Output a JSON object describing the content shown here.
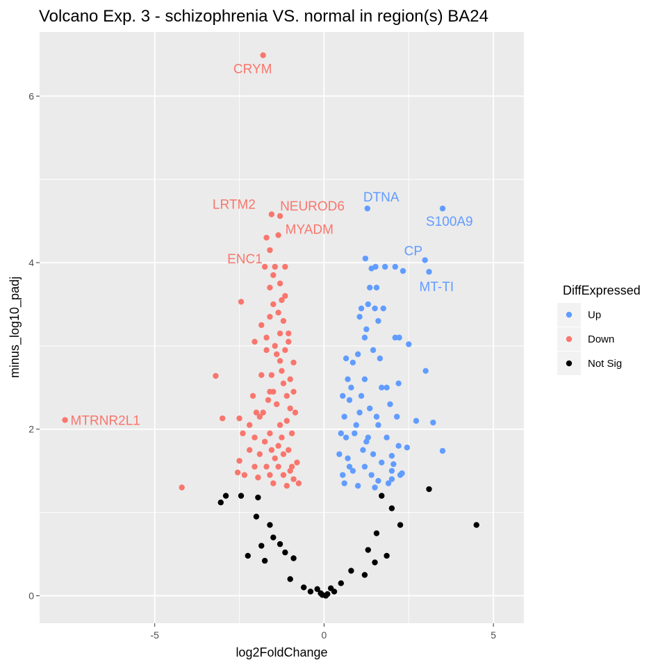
{
  "chart_data": {
    "type": "scatter",
    "title": "Volcano Exp. 3 - schizophrenia VS. normal in region(s) BA24",
    "xlabel": "log2FoldChange",
    "ylabel": "minus_log10_padj",
    "xlim": [
      -8.4,
      5.9
    ],
    "ylim": [
      -0.33,
      6.77
    ],
    "x_ticks": [
      -5,
      0,
      5
    ],
    "x_tick_labels": [
      "-5",
      "0",
      "5"
    ],
    "y_ticks": [
      0,
      2,
      4,
      6
    ],
    "y_tick_labels": [
      "0",
      "2",
      "4",
      "6"
    ],
    "grid": true,
    "legend": {
      "title": "DiffExpressed",
      "placement": "right",
      "entries": [
        {
          "key": "up",
          "label": "Up",
          "color": "#619CFF"
        },
        {
          "key": "down",
          "label": "Down",
          "color": "#F8766D"
        },
        {
          "key": "notsig",
          "label": "Not Sig",
          "color": "#000000"
        }
      ]
    },
    "series": [
      {
        "name": "Up",
        "color": "#619CFF",
        "points": [
          [
            1.28,
            4.65
          ],
          [
            3.5,
            4.65
          ],
          [
            2.98,
            4.03
          ],
          [
            3.1,
            3.89
          ],
          [
            1.22,
            4.05
          ],
          [
            1.4,
            3.93
          ],
          [
            1.52,
            3.95
          ],
          [
            1.8,
            3.95
          ],
          [
            2.1,
            3.95
          ],
          [
            2.33,
            3.9
          ],
          [
            1.35,
            3.7
          ],
          [
            1.55,
            3.7
          ],
          [
            1.1,
            3.45
          ],
          [
            1.3,
            3.5
          ],
          [
            1.5,
            3.45
          ],
          [
            1.75,
            3.45
          ],
          [
            1.05,
            3.35
          ],
          [
            1.6,
            3.3
          ],
          [
            1.25,
            3.2
          ],
          [
            2.1,
            3.1
          ],
          [
            2.22,
            3.1
          ],
          [
            2.5,
            3.02
          ],
          [
            1.2,
            3.1
          ],
          [
            1.45,
            2.95
          ],
          [
            1.65,
            2.85
          ],
          [
            0.65,
            2.85
          ],
          [
            0.85,
            2.8
          ],
          [
            1.0,
            2.9
          ],
          [
            3.0,
            2.7
          ],
          [
            2.2,
            2.55
          ],
          [
            1.85,
            2.5
          ],
          [
            0.55,
            2.4
          ],
          [
            0.75,
            2.35
          ],
          [
            1.2,
            2.6
          ],
          [
            1.95,
            2.3
          ],
          [
            0.6,
            2.15
          ],
          [
            1.05,
            2.2
          ],
          [
            1.6,
            2.05
          ],
          [
            2.15,
            2.15
          ],
          [
            2.72,
            2.1
          ],
          [
            3.22,
            2.08
          ],
          [
            0.5,
            1.95
          ],
          [
            0.9,
            1.95
          ],
          [
            1.3,
            1.9
          ],
          [
            1.85,
            1.9
          ],
          [
            2.2,
            1.8
          ],
          [
            2.45,
            1.78
          ],
          [
            3.5,
            1.74
          ],
          [
            0.45,
            1.7
          ],
          [
            0.7,
            1.65
          ],
          [
            1.15,
            1.75
          ],
          [
            1.7,
            1.6
          ],
          [
            2.0,
            1.68
          ],
          [
            2.05,
            1.58
          ],
          [
            0.55,
            1.45
          ],
          [
            0.85,
            1.5
          ],
          [
            1.4,
            1.45
          ],
          [
            2.0,
            1.5
          ],
          [
            2.25,
            1.45
          ],
          [
            2.3,
            1.47
          ],
          [
            0.6,
            1.35
          ],
          [
            1.0,
            1.32
          ],
          [
            1.6,
            1.38
          ],
          [
            1.9,
            1.35
          ],
          [
            2.0,
            1.4
          ],
          [
            0.8,
            2.5
          ],
          [
            1.1,
            2.4
          ],
          [
            1.35,
            2.25
          ],
          [
            1.55,
            2.15
          ],
          [
            0.95,
            2.05
          ],
          [
            1.25,
            1.85
          ],
          [
            1.45,
            1.7
          ],
          [
            0.75,
            1.55
          ],
          [
            1.2,
            1.55
          ],
          [
            1.5,
            1.3
          ],
          [
            0.65,
            1.9
          ],
          [
            1.7,
            2.5
          ],
          [
            0.7,
            2.6
          ]
        ]
      },
      {
        "name": "Down",
        "color": "#F8766D",
        "points": [
          [
            -1.8,
            6.49
          ],
          [
            -1.55,
            4.58
          ],
          [
            -1.3,
            4.56
          ],
          [
            -1.35,
            4.33
          ],
          [
            -1.6,
            4.15
          ],
          [
            -1.75,
            3.95
          ],
          [
            -1.45,
            3.95
          ],
          [
            -1.15,
            3.95
          ],
          [
            -2.45,
            3.53
          ],
          [
            -1.2,
            3.3
          ],
          [
            -1.05,
            3.15
          ],
          [
            -1.3,
            3.15
          ],
          [
            -1.85,
            3.25
          ],
          [
            -2.05,
            3.05
          ],
          [
            -1.7,
            2.95
          ],
          [
            -1.3,
            2.82
          ],
          [
            -3.2,
            2.64
          ],
          [
            -1.85,
            2.65
          ],
          [
            -1.0,
            2.6
          ],
          [
            -2.1,
            2.4
          ],
          [
            -1.6,
            2.45
          ],
          [
            -1.1,
            2.4
          ],
          [
            -2.0,
            2.2
          ],
          [
            -1.8,
            2.2
          ],
          [
            -1.4,
            2.3
          ],
          [
            -3.0,
            2.13
          ],
          [
            -2.5,
            2.13
          ],
          [
            -2.2,
            2.05
          ],
          [
            -1.9,
            2.15
          ],
          [
            -2.4,
            1.95
          ],
          [
            -2.05,
            1.9
          ],
          [
            -1.6,
            1.95
          ],
          [
            -1.75,
            1.85
          ],
          [
            -1.25,
            1.9
          ],
          [
            -0.95,
            1.95
          ],
          [
            -2.2,
            1.75
          ],
          [
            -1.9,
            1.7
          ],
          [
            -1.55,
            1.75
          ],
          [
            -1.05,
            1.75
          ],
          [
            -2.5,
            1.62
          ],
          [
            -2.05,
            1.55
          ],
          [
            -1.7,
            1.55
          ],
          [
            -1.35,
            1.55
          ],
          [
            -0.8,
            1.6
          ],
          [
            -2.55,
            1.48
          ],
          [
            -2.35,
            1.45
          ],
          [
            -1.95,
            1.42
          ],
          [
            -1.6,
            1.45
          ],
          [
            -1.2,
            1.45
          ],
          [
            -0.9,
            1.4
          ],
          [
            -4.2,
            1.3
          ],
          [
            -1.5,
            1.35
          ],
          [
            -1.1,
            1.32
          ],
          [
            -0.75,
            1.35
          ],
          [
            -1.5,
            3.5
          ],
          [
            -1.25,
            3.55
          ],
          [
            -1.6,
            3.7
          ],
          [
            -1.3,
            3.75
          ],
          [
            -1.7,
            3.1
          ],
          [
            -1.15,
            2.95
          ],
          [
            -1.4,
            2.9
          ],
          [
            -0.9,
            2.8
          ],
          [
            -1.55,
            2.65
          ],
          [
            -1.2,
            2.55
          ],
          [
            -1.0,
            2.25
          ],
          [
            -1.3,
            2.05
          ],
          [
            -1.1,
            2.1
          ],
          [
            -0.85,
            2.2
          ],
          [
            -1.45,
            1.65
          ],
          [
            -1.2,
            1.7
          ],
          [
            -0.95,
            1.55
          ],
          [
            -1.5,
            2.45
          ],
          [
            -1.05,
            3.05
          ],
          [
            -0.9,
            2.45
          ],
          [
            -1.25,
            2.7
          ],
          [
            -1.65,
            2.35
          ],
          [
            -1.35,
            1.8
          ],
          [
            -1.0,
            1.5
          ],
          [
            -1.7,
            4.3
          ],
          [
            -1.5,
            3.85
          ],
          [
            -1.35,
            3.4
          ],
          [
            -1.6,
            3.35
          ],
          [
            -1.15,
            3.6
          ],
          [
            -1.45,
            3.0
          ],
          [
            -7.65,
            2.11
          ]
        ]
      },
      {
        "name": "Not Sig",
        "color": "#000000",
        "points": [
          [
            4.5,
            0.85
          ],
          [
            3.1,
            1.28
          ],
          [
            -2.9,
            1.2
          ],
          [
            -3.05,
            1.12
          ],
          [
            -2.45,
            1.2
          ],
          [
            -2.25,
            0.48
          ],
          [
            -1.75,
            0.42
          ],
          [
            -1.95,
            1.18
          ],
          [
            1.7,
            1.2
          ],
          [
            2.25,
            0.85
          ],
          [
            1.85,
            0.48
          ],
          [
            -1.3,
            0.62
          ],
          [
            -1.15,
            0.52
          ],
          [
            -0.9,
            0.45
          ],
          [
            -1.0,
            0.2
          ],
          [
            -0.6,
            0.1
          ],
          [
            0.5,
            0.15
          ],
          [
            0.8,
            0.3
          ],
          [
            1.3,
            0.55
          ],
          [
            1.55,
            0.75
          ],
          [
            -2.0,
            0.95
          ],
          [
            -1.6,
            0.85
          ],
          [
            2.0,
            1.05
          ],
          [
            -1.85,
            0.6
          ],
          [
            -1.5,
            0.7
          ],
          [
            1.5,
            0.4
          ],
          [
            1.2,
            0.25
          ],
          [
            -0.4,
            0.05
          ],
          [
            0.3,
            0.05
          ],
          [
            0.1,
            0.02
          ],
          [
            -0.1,
            0.03
          ],
          [
            0.05,
            0.0
          ],
          [
            -0.05,
            0.01
          ],
          [
            -0.2,
            0.08
          ],
          [
            0.2,
            0.09
          ]
        ]
      }
    ],
    "annotations": [
      {
        "text": "CRYM",
        "x": -1.8,
        "y": 6.49,
        "series": "Down"
      },
      {
        "text": "LRTM2",
        "x": -1.55,
        "y": 4.58,
        "series": "Down"
      },
      {
        "text": "NEUROD6",
        "x": -1.3,
        "y": 4.56,
        "series": "Down"
      },
      {
        "text": "ENC1",
        "x": -1.6,
        "y": 4.15,
        "series": "Down"
      },
      {
        "text": "MYADM",
        "x": -1.35,
        "y": 4.33,
        "series": "Down"
      },
      {
        "text": "MTRNR2L1",
        "x": -7.65,
        "y": 2.11,
        "series": "Down"
      },
      {
        "text": "DTNA",
        "x": 1.28,
        "y": 4.65,
        "series": "Up"
      },
      {
        "text": "S100A9",
        "x": 3.5,
        "y": 4.65,
        "series": "Up"
      },
      {
        "text": "CP",
        "x": 2.98,
        "y": 4.03,
        "series": "Up"
      },
      {
        "text": "MT-TI",
        "x": 3.1,
        "y": 3.89,
        "series": "Up"
      }
    ]
  }
}
